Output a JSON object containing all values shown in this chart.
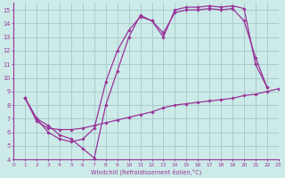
{
  "xlabel": "Windchill (Refroidissement éolien,°C)",
  "bg_color": "#cceae8",
  "grid_color": "#aacccc",
  "line_color": "#993399",
  "xmin": 0,
  "xmax": 23,
  "ymin": 4,
  "ymax": 15.5,
  "xticks": [
    0,
    1,
    2,
    3,
    4,
    5,
    6,
    7,
    8,
    9,
    10,
    11,
    12,
    13,
    14,
    15,
    16,
    17,
    18,
    19,
    20,
    21,
    22,
    23
  ],
  "yticks": [
    4,
    5,
    6,
    7,
    8,
    9,
    10,
    11,
    12,
    13,
    14,
    15
  ],
  "line1_x": [
    1,
    2,
    3,
    4,
    5,
    6,
    7,
    8,
    9,
    10,
    11,
    12,
    13,
    14,
    15,
    16,
    17,
    18,
    19,
    20,
    21,
    22
  ],
  "line1_y": [
    8.5,
    7.0,
    6.5,
    5.8,
    5.5,
    4.8,
    4.1,
    8.0,
    10.5,
    13.0,
    14.6,
    14.2,
    13.0,
    15.0,
    15.2,
    15.2,
    15.3,
    15.2,
    15.3,
    15.1,
    11.0,
    9.3
  ],
  "line2_x": [
    1,
    2,
    3,
    4,
    5,
    6,
    7,
    8,
    9,
    10,
    11,
    12,
    13,
    14,
    15,
    16,
    17,
    18,
    19,
    20,
    21,
    22
  ],
  "line2_y": [
    8.5,
    7.0,
    6.0,
    5.5,
    5.3,
    5.5,
    6.3,
    9.7,
    12.0,
    13.5,
    14.5,
    14.2,
    13.3,
    14.8,
    15.0,
    15.0,
    15.1,
    15.0,
    15.1,
    14.2,
    11.5,
    9.3
  ],
  "line3_x": [
    1,
    2,
    3,
    4,
    5,
    6,
    7,
    8,
    9,
    10,
    11,
    12,
    13,
    14,
    15,
    16,
    17,
    18,
    19,
    20,
    21,
    22,
    23
  ],
  "line3_y": [
    8.5,
    6.8,
    6.3,
    6.2,
    6.2,
    6.3,
    6.5,
    6.7,
    6.9,
    7.1,
    7.3,
    7.5,
    7.8,
    8.0,
    8.1,
    8.2,
    8.3,
    8.4,
    8.5,
    8.7,
    8.8,
    9.0,
    9.2
  ]
}
